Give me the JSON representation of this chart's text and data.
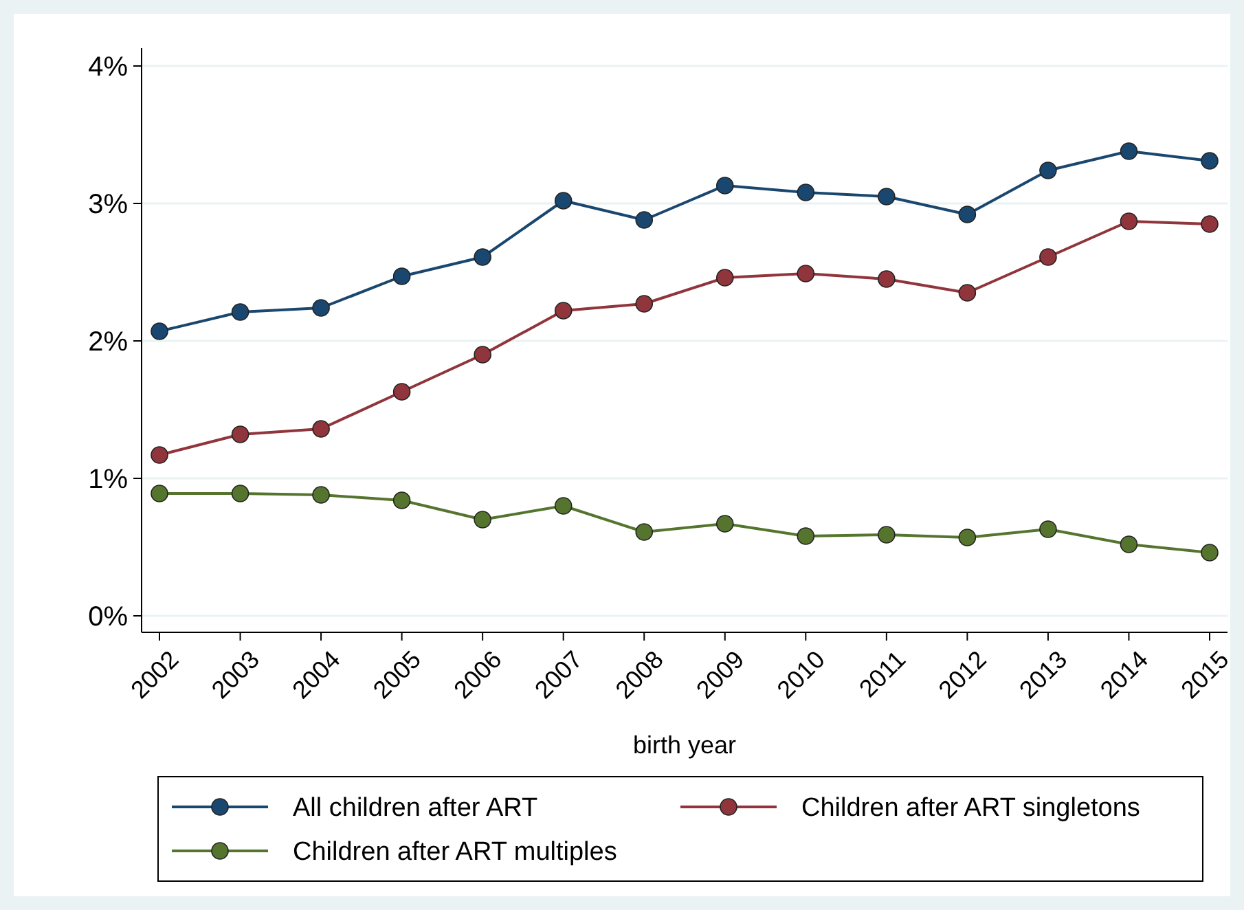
{
  "chart_data": {
    "type": "line",
    "xlabel": "birth year",
    "categories": [
      "2002",
      "2003",
      "2004",
      "2005",
      "2006",
      "2007",
      "2008",
      "2009",
      "2010",
      "2011",
      "2012",
      "2013",
      "2014",
      "2015"
    ],
    "series": [
      {
        "name": "All children after ART",
        "color": "#1a476f",
        "values": [
          2.07,
          2.21,
          2.24,
          2.47,
          2.61,
          3.02,
          2.88,
          3.13,
          3.08,
          3.05,
          2.92,
          3.24,
          3.38,
          3.31
        ]
      },
      {
        "name": "Children after ART singletons",
        "color": "#90353b",
        "values": [
          1.17,
          1.32,
          1.36,
          1.63,
          1.9,
          2.22,
          2.27,
          2.46,
          2.49,
          2.45,
          2.35,
          2.61,
          2.87,
          2.85
        ]
      },
      {
        "name": "Children after ART multiples",
        "color": "#55752f",
        "values": [
          0.89,
          0.89,
          0.88,
          0.84,
          0.7,
          0.8,
          0.61,
          0.67,
          0.58,
          0.59,
          0.57,
          0.63,
          0.52,
          0.46
        ]
      }
    ],
    "ylim": [
      0,
      4.13
    ],
    "yticks": [
      {
        "value": 0,
        "label": "0%"
      },
      {
        "value": 1,
        "label": "1%"
      },
      {
        "value": 2,
        "label": "2%"
      },
      {
        "value": 3,
        "label": "3%"
      },
      {
        "value": 4,
        "label": "4%"
      }
    ],
    "grid": "y",
    "legend": "bottom",
    "marker": "circle",
    "line_style": "solid"
  }
}
